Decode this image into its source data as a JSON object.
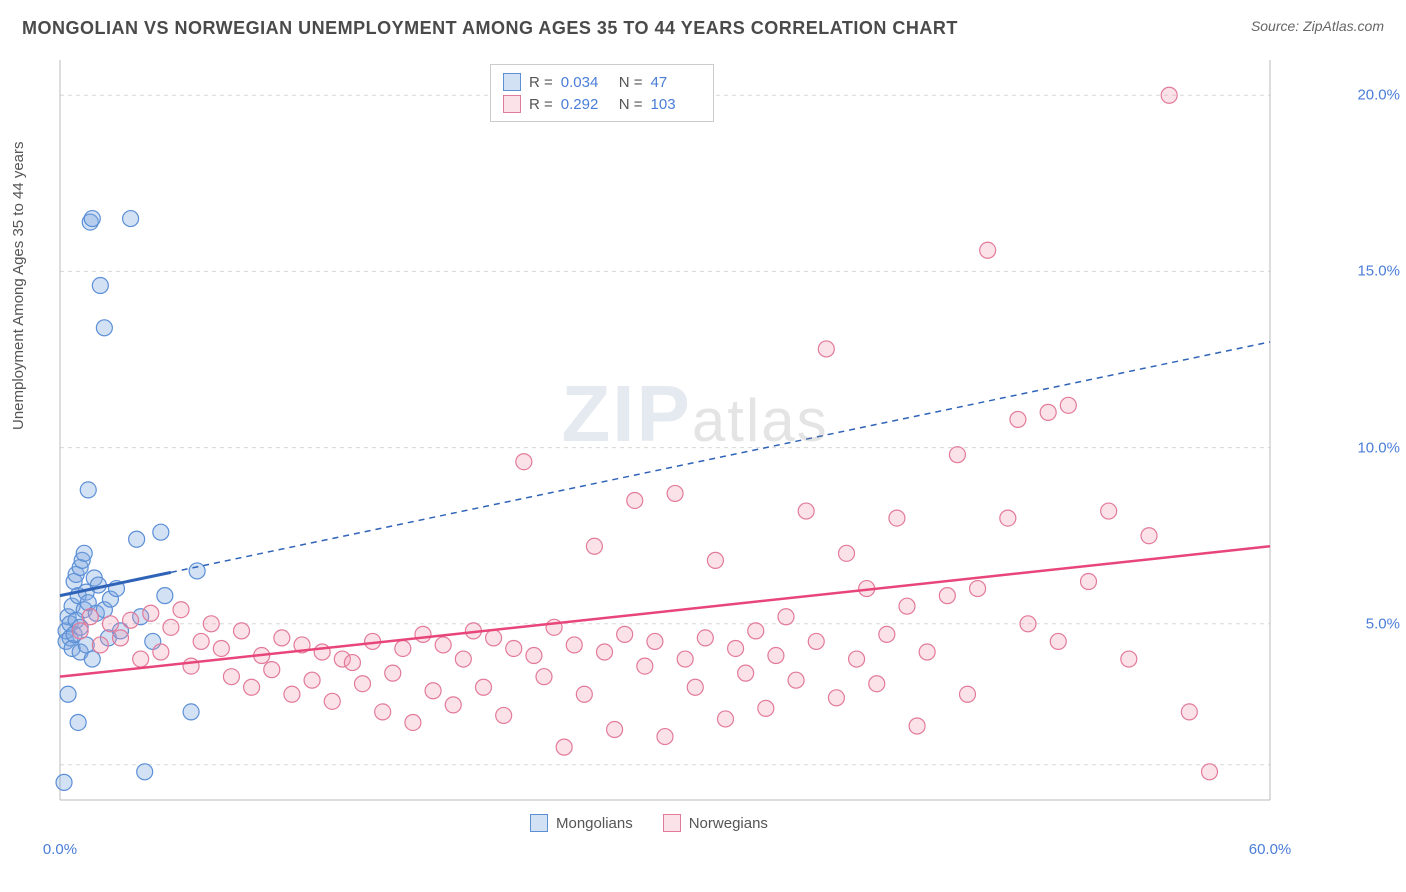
{
  "title": "MONGOLIAN VS NORWEGIAN UNEMPLOYMENT AMONG AGES 35 TO 44 YEARS CORRELATION CHART",
  "source": "Source: ZipAtlas.com",
  "y_axis_label": "Unemployment Among Ages 35 to 44 years",
  "watermark": {
    "prefix": "ZIP",
    "suffix": "atlas"
  },
  "chart": {
    "type": "scatter",
    "background_color": "#ffffff",
    "grid_color": "#d8d8d8",
    "axis_color": "#bbbbbb",
    "tick_color": "#4a7dd8",
    "tick_fontsize": 15,
    "label_fontsize": 15,
    "xlim": [
      0,
      60
    ],
    "ylim": [
      0,
      21
    ],
    "x_ticks": [
      {
        "value": 0,
        "label": "0.0%"
      },
      {
        "value": 60,
        "label": "60.0%"
      }
    ],
    "y_ticks": [
      {
        "value": 5,
        "label": "5.0%"
      },
      {
        "value": 10,
        "label": "10.0%"
      },
      {
        "value": 15,
        "label": "15.0%"
      },
      {
        "value": 20,
        "label": "20.0%"
      }
    ],
    "y_gridlines": [
      1,
      5,
      10,
      15,
      20
    ],
    "series": [
      {
        "name": "Mongolians",
        "legend_key": "mongolians",
        "marker_color_fill": "rgba(128,170,225,0.35)",
        "marker_color_stroke": "#5b8fd6",
        "marker_radius": 8,
        "trend_color": "#2f63b8",
        "trend_width_solid": 3,
        "trend_width_dash": 1.5,
        "trend_dash": "6,5",
        "trend_solid_range": [
          0,
          5.5
        ],
        "trend_line": {
          "x1": 0,
          "y1": 5.8,
          "x2": 60,
          "y2": 13.0
        },
        "r_label": "R =",
        "r_value": "0.034",
        "n_label": "N =",
        "n_value": "47",
        "points": [
          [
            0.2,
            0.5
          ],
          [
            0.3,
            4.5
          ],
          [
            0.3,
            4.8
          ],
          [
            0.4,
            5.2
          ],
          [
            0.4,
            3.0
          ],
          [
            0.5,
            4.6
          ],
          [
            0.5,
            5.0
          ],
          [
            0.6,
            4.3
          ],
          [
            0.6,
            5.5
          ],
          [
            0.7,
            4.7
          ],
          [
            0.7,
            6.2
          ],
          [
            0.8,
            5.1
          ],
          [
            0.8,
            6.4
          ],
          [
            0.9,
            2.2
          ],
          [
            0.9,
            5.8
          ],
          [
            1.0,
            4.2
          ],
          [
            1.0,
            6.6
          ],
          [
            1.0,
            4.9
          ],
          [
            1.1,
            6.8
          ],
          [
            1.2,
            5.4
          ],
          [
            1.2,
            7.0
          ],
          [
            1.3,
            4.4
          ],
          [
            1.3,
            5.9
          ],
          [
            1.4,
            8.8
          ],
          [
            1.4,
            5.6
          ],
          [
            1.5,
            16.4
          ],
          [
            1.6,
            16.5
          ],
          [
            1.6,
            4.0
          ],
          [
            1.7,
            6.3
          ],
          [
            1.8,
            5.3
          ],
          [
            1.9,
            6.1
          ],
          [
            2.0,
            14.6
          ],
          [
            2.2,
            13.4
          ],
          [
            2.2,
            5.4
          ],
          [
            2.4,
            4.6
          ],
          [
            2.5,
            5.7
          ],
          [
            2.8,
            6.0
          ],
          [
            3.0,
            4.8
          ],
          [
            3.5,
            16.5
          ],
          [
            3.8,
            7.4
          ],
          [
            4.0,
            5.2
          ],
          [
            4.2,
            0.8
          ],
          [
            4.6,
            4.5
          ],
          [
            5.0,
            7.6
          ],
          [
            5.2,
            5.8
          ],
          [
            6.5,
            2.5
          ],
          [
            6.8,
            6.5
          ]
        ]
      },
      {
        "name": "Norwegians",
        "legend_key": "norwegians",
        "marker_color_fill": "rgba(240,150,175,0.28)",
        "marker_color_stroke": "#e27a9a",
        "marker_radius": 8,
        "trend_color": "#e8457a",
        "trend_width_solid": 2.5,
        "trend_line": {
          "x1": 0,
          "y1": 3.5,
          "x2": 60,
          "y2": 7.2
        },
        "r_label": "R =",
        "r_value": "0.292",
        "n_label": "N =",
        "n_value": "103",
        "points": [
          [
            1.0,
            4.8
          ],
          [
            1.5,
            5.2
          ],
          [
            2.0,
            4.4
          ],
          [
            2.5,
            5.0
          ],
          [
            3.0,
            4.6
          ],
          [
            3.5,
            5.1
          ],
          [
            4.0,
            4.0
          ],
          [
            4.5,
            5.3
          ],
          [
            5.0,
            4.2
          ],
          [
            5.5,
            4.9
          ],
          [
            6.0,
            5.4
          ],
          [
            6.5,
            3.8
          ],
          [
            7.0,
            4.5
          ],
          [
            7.5,
            5.0
          ],
          [
            8.0,
            4.3
          ],
          [
            8.5,
            3.5
          ],
          [
            9.0,
            4.8
          ],
          [
            9.5,
            3.2
          ],
          [
            10.0,
            4.1
          ],
          [
            10.5,
            3.7
          ],
          [
            11.0,
            4.6
          ],
          [
            11.5,
            3.0
          ],
          [
            12.0,
            4.4
          ],
          [
            12.5,
            3.4
          ],
          [
            13.0,
            4.2
          ],
          [
            13.5,
            2.8
          ],
          [
            14.0,
            4.0
          ],
          [
            14.5,
            3.9
          ],
          [
            15.0,
            3.3
          ],
          [
            15.5,
            4.5
          ],
          [
            16.0,
            2.5
          ],
          [
            16.5,
            3.6
          ],
          [
            17.0,
            4.3
          ],
          [
            17.5,
            2.2
          ],
          [
            18.0,
            4.7
          ],
          [
            18.5,
            3.1
          ],
          [
            19.0,
            4.4
          ],
          [
            19.5,
            2.7
          ],
          [
            20.0,
            4.0
          ],
          [
            20.5,
            4.8
          ],
          [
            21.0,
            3.2
          ],
          [
            21.5,
            4.6
          ],
          [
            22.0,
            2.4
          ],
          [
            22.5,
            4.3
          ],
          [
            23.0,
            9.6
          ],
          [
            23.5,
            4.1
          ],
          [
            24.0,
            3.5
          ],
          [
            24.5,
            4.9
          ],
          [
            25.0,
            1.5
          ],
          [
            25.5,
            4.4
          ],
          [
            26.0,
            3.0
          ],
          [
            26.5,
            7.2
          ],
          [
            27.0,
            4.2
          ],
          [
            27.5,
            2.0
          ],
          [
            28.0,
            4.7
          ],
          [
            28.5,
            8.5
          ],
          [
            29.0,
            3.8
          ],
          [
            29.5,
            4.5
          ],
          [
            30.0,
            1.8
          ],
          [
            30.5,
            8.7
          ],
          [
            31.0,
            4.0
          ],
          [
            31.5,
            3.2
          ],
          [
            32.0,
            4.6
          ],
          [
            32.5,
            6.8
          ],
          [
            33.0,
            2.3
          ],
          [
            33.5,
            4.3
          ],
          [
            34.0,
            3.6
          ],
          [
            34.5,
            4.8
          ],
          [
            35.0,
            2.6
          ],
          [
            35.5,
            4.1
          ],
          [
            36.0,
            5.2
          ],
          [
            36.5,
            3.4
          ],
          [
            37.0,
            8.2
          ],
          [
            37.5,
            4.5
          ],
          [
            38.0,
            12.8
          ],
          [
            38.5,
            2.9
          ],
          [
            39.0,
            7.0
          ],
          [
            39.5,
            4.0
          ],
          [
            40.0,
            6.0
          ],
          [
            40.5,
            3.3
          ],
          [
            41.0,
            4.7
          ],
          [
            41.5,
            8.0
          ],
          [
            42.0,
            5.5
          ],
          [
            42.5,
            2.1
          ],
          [
            43.0,
            4.2
          ],
          [
            44.0,
            5.8
          ],
          [
            44.5,
            9.8
          ],
          [
            45.0,
            3.0
          ],
          [
            45.5,
            6.0
          ],
          [
            46.0,
            15.6
          ],
          [
            47.0,
            8.0
          ],
          [
            47.5,
            10.8
          ],
          [
            48.0,
            5.0
          ],
          [
            49.0,
            11.0
          ],
          [
            49.5,
            4.5
          ],
          [
            50.0,
            11.2
          ],
          [
            51.0,
            6.2
          ],
          [
            52.0,
            8.2
          ],
          [
            53.0,
            4.0
          ],
          [
            54.0,
            7.5
          ],
          [
            55.0,
            20.0
          ],
          [
            56.0,
            2.5
          ],
          [
            57.0,
            0.8
          ]
        ]
      }
    ]
  }
}
